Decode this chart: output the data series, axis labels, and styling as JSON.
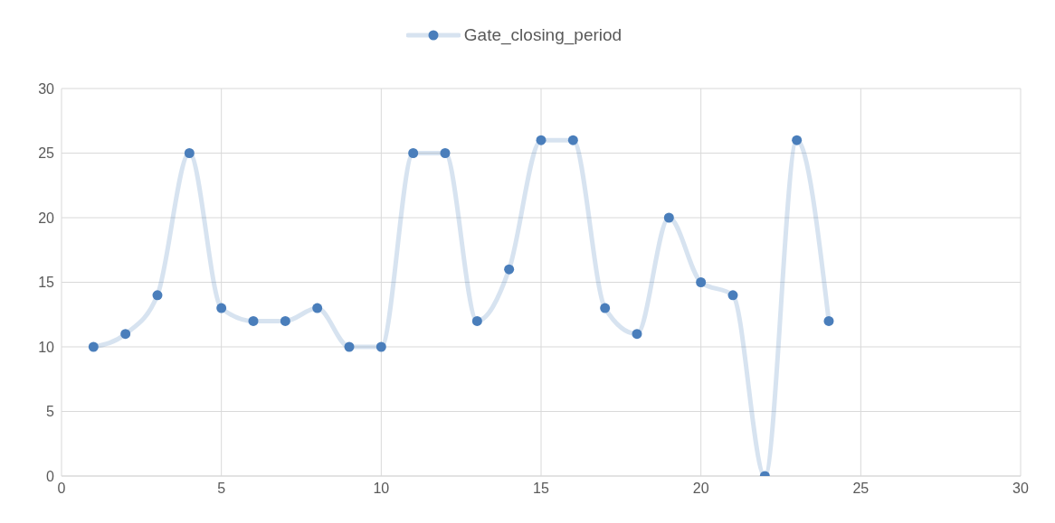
{
  "chart_data": {
    "type": "line",
    "x": [
      1,
      2,
      3,
      4,
      5,
      6,
      7,
      8,
      9,
      10,
      11,
      12,
      13,
      14,
      15,
      16,
      17,
      18,
      19,
      20,
      21,
      22,
      23,
      24
    ],
    "series": [
      {
        "name": "Gate_closing_period",
        "color": "#4a7ebb",
        "values": [
          10,
          11,
          14,
          25,
          13,
          12,
          12,
          13,
          10,
          10,
          25,
          25,
          12,
          16,
          26,
          26,
          13,
          11,
          20,
          15,
          14,
          0,
          26,
          12
        ]
      }
    ],
    "xlim": [
      0,
      30
    ],
    "xticks": [
      0,
      5,
      10,
      15,
      20,
      25,
      30
    ],
    "ylim": [
      0,
      30
    ],
    "yticks": [
      0,
      5,
      10,
      15,
      20,
      25,
      30
    ],
    "grid": true,
    "legend": "top",
    "marker": "circle",
    "line_style": "solid"
  }
}
